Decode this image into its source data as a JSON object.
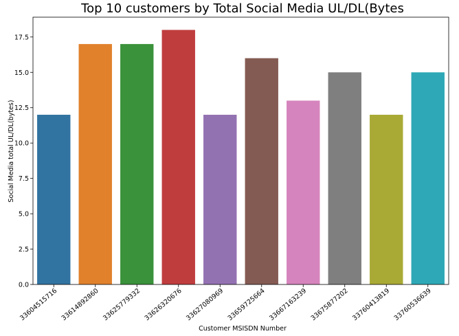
{
  "chart_data": {
    "type": "bar",
    "title": "Top 10 customers by Total Social Media UL/DL(Bytes",
    "xlabel": "Customer MSISDN Number",
    "ylabel": "Social Media total UL/DL(bytes)",
    "categories": [
      "33604515716",
      "33614892860",
      "33625779332",
      "33626320676",
      "33627080969",
      "33659725664",
      "33667163239",
      "33675877202",
      "33760413819",
      "33760536639"
    ],
    "values": [
      12,
      17,
      17,
      18,
      12,
      16,
      13,
      15,
      12,
      15
    ],
    "colors": [
      "#3274a1",
      "#e1812c",
      "#3a923a",
      "#c03d3e",
      "#9372b2",
      "#845b53",
      "#d684bd",
      "#7f7f7f",
      "#a9aa35",
      "#2ea8b6"
    ],
    "yticks": [
      "0.0",
      "2.5",
      "5.0",
      "7.5",
      "10.0",
      "12.5",
      "15.0",
      "17.5"
    ],
    "ylim": [
      0,
      18.9
    ],
    "grid": false
  }
}
